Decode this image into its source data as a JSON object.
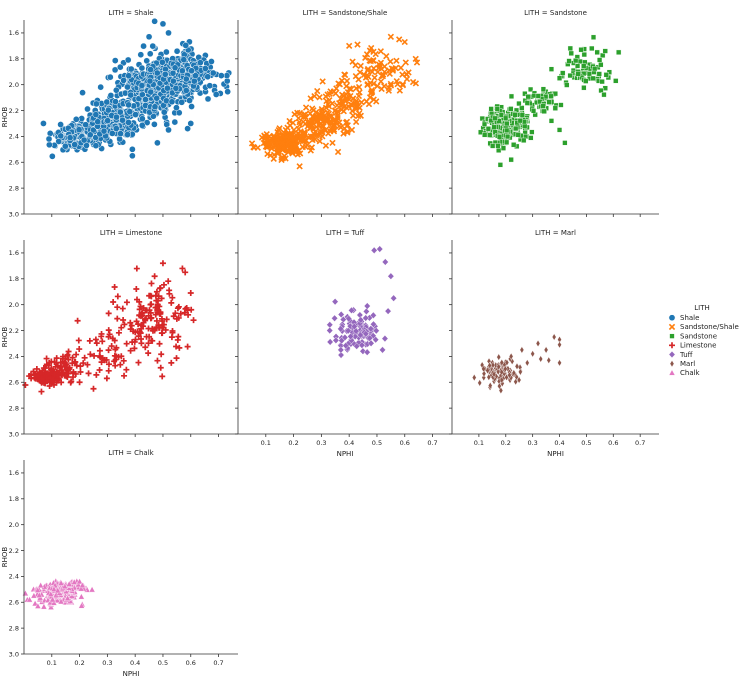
{
  "chart_data": {
    "type": "scatter",
    "facet_variable": "LITH",
    "xlabel": "NPHI",
    "ylabel": "RHOB",
    "xlim": [
      0,
      0.77
    ],
    "ylim": [
      1.5,
      3.0
    ],
    "y_inverted": true,
    "xticks": [
      0.1,
      0.2,
      0.3,
      0.4,
      0.5,
      0.6,
      0.7
    ],
    "yticks": [
      1.6,
      1.8,
      2.0,
      2.2,
      2.4,
      2.6,
      2.8,
      3.0
    ],
    "grid": false,
    "legend": {
      "title": "LITH",
      "position": "right"
    },
    "panels": [
      {
        "title": "LITH = Shale",
        "name": "Shale",
        "marker": "circle",
        "color": "#1f77b4",
        "clusters": [
          {
            "cx": 0.2,
            "cy": 2.4,
            "sx": 0.05,
            "sy": 0.05,
            "n": 220
          },
          {
            "cx": 0.33,
            "cy": 2.25,
            "sx": 0.05,
            "sy": 0.08,
            "n": 230
          },
          {
            "cx": 0.45,
            "cy": 2.02,
            "sx": 0.06,
            "sy": 0.12,
            "n": 320
          },
          {
            "cx": 0.55,
            "cy": 1.92,
            "sx": 0.05,
            "sy": 0.1,
            "n": 220
          },
          {
            "cx": 0.62,
            "cy": 1.95,
            "sx": 0.05,
            "sy": 0.06,
            "n": 80
          }
        ],
        "points": [
          [
            0.07,
            2.3
          ],
          [
            0.09,
            2.42
          ],
          [
            0.73,
            1.93
          ],
          [
            0.71,
            1.93
          ],
          [
            0.39,
            2.55
          ],
          [
            0.39,
            2.5
          ],
          [
            0.5,
            1.53
          ],
          [
            0.47,
            1.51
          ],
          [
            0.52,
            1.6
          ],
          [
            0.45,
            1.63
          ],
          [
            0.48,
            2.45
          ],
          [
            0.52,
            2.35
          ],
          [
            0.6,
            2.3
          ]
        ]
      },
      {
        "title": "LITH = Sandstone/Shale",
        "name": "Sandstone/Shale",
        "marker": "x",
        "color": "#ff7f0e",
        "clusters": [
          {
            "cx": 0.18,
            "cy": 2.45,
            "sx": 0.05,
            "sy": 0.06,
            "n": 180
          },
          {
            "cx": 0.3,
            "cy": 2.28,
            "sx": 0.05,
            "sy": 0.07,
            "n": 120
          },
          {
            "cx": 0.4,
            "cy": 2.1,
            "sx": 0.05,
            "sy": 0.08,
            "n": 80
          },
          {
            "cx": 0.52,
            "cy": 1.9,
            "sx": 0.05,
            "sy": 0.08,
            "n": 70
          }
        ],
        "points": [
          [
            0.4,
            1.7
          ],
          [
            0.43,
            1.69
          ],
          [
            0.55,
            1.63
          ],
          [
            0.58,
            1.65
          ],
          [
            0.6,
            1.67
          ],
          [
            0.63,
            1.98
          ],
          [
            0.64,
            1.99
          ],
          [
            0.41,
            2.35
          ],
          [
            0.34,
            2.45
          ],
          [
            0.36,
            2.52
          ]
        ]
      },
      {
        "title": "LITH = Sandstone",
        "name": "Sandstone",
        "marker": "square",
        "color": "#2ca02c",
        "clusters": [
          {
            "cx": 0.2,
            "cy": 2.32,
            "sx": 0.04,
            "sy": 0.07,
            "n": 250
          },
          {
            "cx": 0.33,
            "cy": 2.12,
            "sx": 0.04,
            "sy": 0.04,
            "n": 60
          },
          {
            "cx": 0.5,
            "cy": 1.9,
            "sx": 0.05,
            "sy": 0.08,
            "n": 70
          }
        ],
        "points": [
          [
            0.48,
            1.73
          ],
          [
            0.52,
            1.72
          ],
          [
            0.54,
            1.75
          ],
          [
            0.57,
            1.74
          ],
          [
            0.62,
            1.75
          ],
          [
            0.37,
            2.28
          ],
          [
            0.4,
            2.35
          ],
          [
            0.42,
            2.45
          ],
          [
            0.18,
            2.62
          ],
          [
            0.22,
            2.58
          ],
          [
            0.37,
            1.88
          ],
          [
            0.4,
            1.95
          ]
        ]
      },
      {
        "title": "LITH = Limestone",
        "name": "Limestone",
        "marker": "plus",
        "color": "#d62728",
        "clusters": [
          {
            "cx": 0.08,
            "cy": 2.56,
            "sx": 0.03,
            "sy": 0.03,
            "n": 110
          },
          {
            "cx": 0.14,
            "cy": 2.5,
            "sx": 0.04,
            "sy": 0.06,
            "n": 70
          },
          {
            "cx": 0.28,
            "cy": 2.38,
            "sx": 0.05,
            "sy": 0.1,
            "n": 40
          },
          {
            "cx": 0.45,
            "cy": 2.1,
            "sx": 0.07,
            "sy": 0.15,
            "n": 150
          }
        ],
        "points": [
          [
            0.5,
            1.68
          ],
          [
            0.57,
            1.72
          ],
          [
            0.58,
            1.75
          ],
          [
            0.6,
            1.91
          ],
          [
            0.61,
            2.12
          ],
          [
            0.25,
            2.65
          ],
          [
            0.2,
            2.6
          ],
          [
            0.53,
            2.45
          ],
          [
            0.36,
            2.55
          ],
          [
            0.47,
            1.78
          ]
        ]
      },
      {
        "title": "LITH = Tuff",
        "name": "Tuff",
        "marker": "diamond",
        "color": "#9467bd",
        "clusters": [
          {
            "cx": 0.43,
            "cy": 2.22,
            "sx": 0.04,
            "sy": 0.08,
            "n": 110
          }
        ],
        "points": [
          [
            0.49,
            1.58
          ],
          [
            0.51,
            1.57
          ],
          [
            0.53,
            1.67
          ],
          [
            0.55,
            1.78
          ],
          [
            0.56,
            1.95
          ],
          [
            0.33,
            2.2
          ],
          [
            0.37,
            2.35
          ],
          [
            0.52,
            2.35
          ],
          [
            0.54,
            2.05
          ]
        ]
      },
      {
        "title": "LITH = Marl",
        "name": "Marl",
        "marker": "diamond-thin",
        "color": "#8c564b",
        "clusters": [
          {
            "cx": 0.18,
            "cy": 2.52,
            "sx": 0.04,
            "sy": 0.05,
            "n": 90
          }
        ],
        "points": [
          [
            0.32,
            2.3
          ],
          [
            0.35,
            2.35
          ],
          [
            0.38,
            2.25
          ],
          [
            0.4,
            2.27
          ],
          [
            0.4,
            2.31
          ],
          [
            0.36,
            2.43
          ],
          [
            0.4,
            2.45
          ],
          [
            0.33,
            2.42
          ],
          [
            0.3,
            2.38
          ],
          [
            0.28,
            2.45
          ],
          [
            0.22,
            2.4
          ],
          [
            0.26,
            2.35
          ]
        ]
      },
      {
        "title": "LITH = Chalk",
        "name": "Chalk",
        "marker": "triangle",
        "color": "#e377c2",
        "clusters": [
          {
            "cx": 0.12,
            "cy": 2.53,
            "sx": 0.04,
            "sy": 0.04,
            "n": 150
          },
          {
            "cx": 0.17,
            "cy": 2.48,
            "sx": 0.025,
            "sy": 0.025,
            "n": 60
          }
        ],
        "points": [
          [
            0.04,
            2.61
          ],
          [
            0.05,
            2.63
          ],
          [
            0.06,
            2.47
          ],
          [
            0.2,
            2.44
          ],
          [
            0.21,
            2.47
          ],
          [
            0.02,
            2.58
          ]
        ]
      }
    ]
  }
}
